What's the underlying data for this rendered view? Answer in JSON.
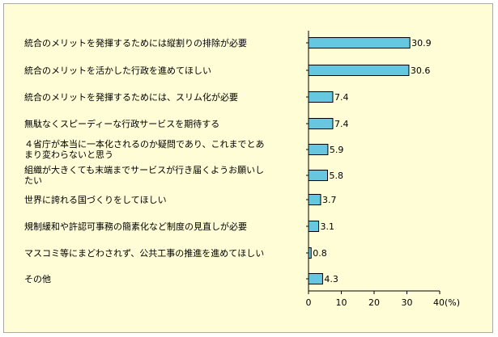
{
  "chart_data": {
    "type": "bar",
    "orientation": "horizontal",
    "title": "",
    "xlabel": "",
    "ylabel": "",
    "categories": [
      [
        "統合のメリットを発揮するためには縦割りの排除が必要"
      ],
      [
        "統合のメリットを活かした行政を進めてほしい"
      ],
      [
        "統合のメリットを発揮するためには、スリム化が必要"
      ],
      [
        "無駄なくスピーディーな行政サービスを期待する"
      ],
      [
        "４省庁が本当に一本化されるのか疑問であり、これまでとあ",
        "まり変わらないと思う"
      ],
      [
        "組織が大きくても末端までサービスが行き届くようお願いし",
        "たい"
      ],
      [
        "世界に誇れる国づくりをしてほしい"
      ],
      [
        "規制緩和や許認可事務の簡素化など制度の見直しが必要"
      ],
      [
        "マスコミ等にまどわされず、公共工事の推進を進めてほしい"
      ],
      [
        "その他"
      ]
    ],
    "values": [
      30.9,
      30.6,
      7.4,
      7.4,
      5.9,
      5.8,
      3.7,
      3.1,
      0.8,
      4.3
    ],
    "value_labels": [
      "30.9",
      "30.6",
      "7.4",
      "7.4",
      "5.9",
      "5.8",
      "3.7",
      "3.1",
      "0.8",
      "4.3"
    ],
    "xlim": [
      0,
      40
    ],
    "ticks": [
      "0",
      "10",
      "20",
      "30",
      "40(%)"
    ],
    "tick_values": [
      0,
      10,
      20,
      30,
      40
    ],
    "grid": false,
    "legend": "none",
    "colors": {
      "bar": "#66c8e0",
      "bar_stroke": "#000000",
      "background": "#fffdd6",
      "axis": "#000000"
    }
  }
}
